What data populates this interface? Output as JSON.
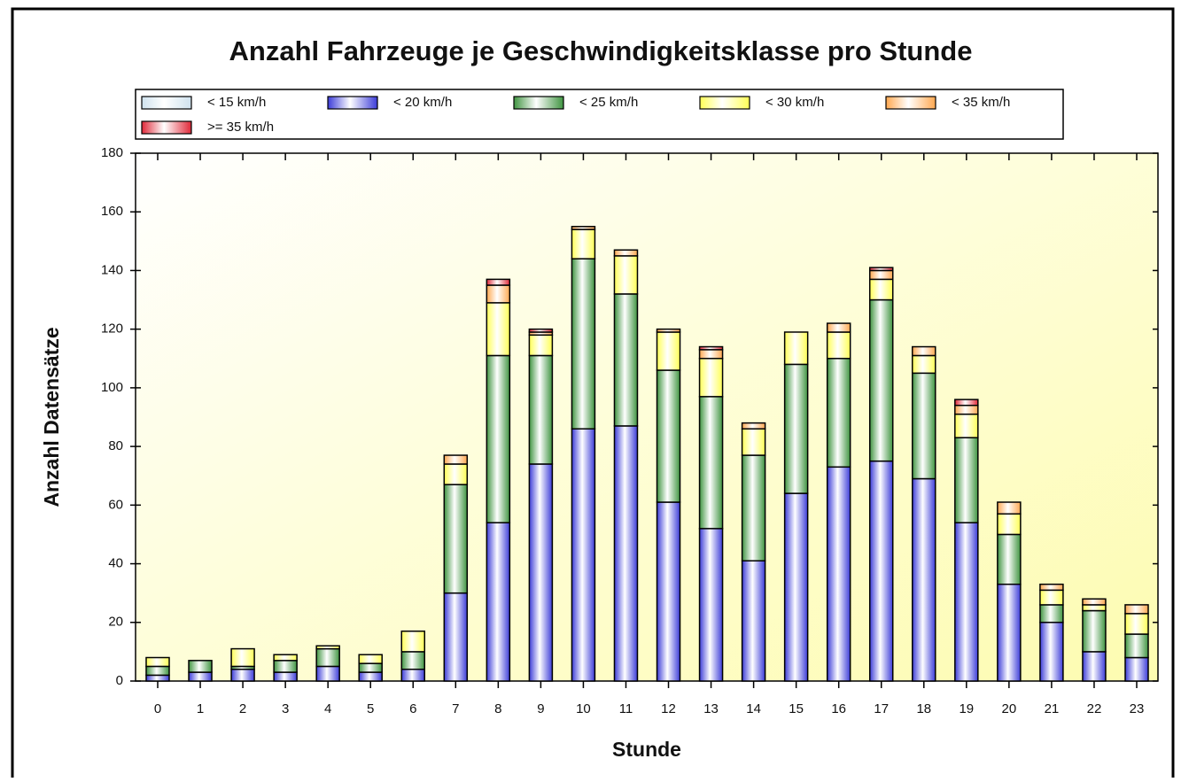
{
  "chart_data": {
    "type": "stacked-bar",
    "title": "Anzahl Fahrzeuge je Geschwindigkeitsklasse pro Stunde",
    "x_label": "Stunde",
    "y_label": "Anzahl Datensätze",
    "categories": [
      "0",
      "1",
      "2",
      "3",
      "4",
      "5",
      "6",
      "7",
      "8",
      "9",
      "10",
      "11",
      "12",
      "13",
      "14",
      "15",
      "16",
      "17",
      "18",
      "19",
      "20",
      "21",
      "22",
      "23"
    ],
    "series": [
      {
        "name": "< 15 km/h",
        "color": "#cfe2ee",
        "values": [
          0,
          0,
          0,
          0,
          0,
          0,
          0,
          0,
          0,
          0,
          0,
          0,
          0,
          0,
          0,
          0,
          0,
          0,
          0,
          0,
          0,
          0,
          0,
          0
        ]
      },
      {
        "name": "< 20 km/h",
        "color": "#3c3cd8",
        "values": [
          2,
          3,
          4,
          3,
          5,
          3,
          4,
          30,
          54,
          74,
          86,
          87,
          61,
          52,
          41,
          64,
          73,
          75,
          69,
          54,
          33,
          20,
          10,
          8
        ]
      },
      {
        "name": "< 25 km/h",
        "color": "#3f9440",
        "values": [
          3,
          4,
          1,
          4,
          6,
          3,
          6,
          37,
          57,
          37,
          58,
          45,
          45,
          45,
          36,
          44,
          37,
          55,
          36,
          29,
          17,
          6,
          14,
          8
        ]
      },
      {
        "name": "< 30 km/h",
        "color": "#ffff55",
        "values": [
          3,
          0,
          6,
          2,
          1,
          3,
          7,
          7,
          18,
          7,
          10,
          13,
          13,
          13,
          9,
          11,
          9,
          7,
          6,
          8,
          7,
          5,
          2,
          7
        ]
      },
      {
        "name": "< 35 km/h",
        "color": "#ffa850",
        "values": [
          0,
          0,
          0,
          0,
          0,
          0,
          0,
          3,
          6,
          1,
          1,
          2,
          1,
          3,
          2,
          0,
          3,
          3,
          3,
          3,
          4,
          2,
          2,
          3
        ]
      },
      {
        "name": ">= 35 km/h",
        "color": "#e02838",
        "values": [
          0,
          0,
          0,
          0,
          0,
          0,
          0,
          0,
          2,
          1,
          0,
          0,
          0,
          1,
          0,
          0,
          0,
          1,
          0,
          2,
          0,
          0,
          0,
          0
        ]
      }
    ],
    "ylim": [
      0,
      180
    ],
    "yticks": [
      0,
      20,
      40,
      60,
      80,
      100,
      120,
      140,
      160,
      180
    ]
  }
}
